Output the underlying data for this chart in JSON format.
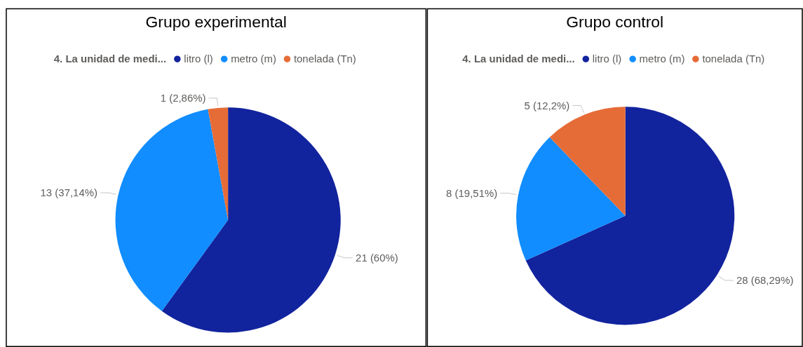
{
  "chart_data": [
    {
      "type": "pie",
      "title": "Grupo experimental",
      "legend_title": "4. La unidad de medi...",
      "legend": "top",
      "categories": [
        "litro (l)",
        "metro (m)",
        "tonelada (Tn)"
      ],
      "values": [
        21,
        13,
        1
      ],
      "colors": [
        "#12239e",
        "#118dff",
        "#e66c37"
      ],
      "value_labels": [
        "21 (60%)",
        "13 (37,14%)",
        "1 (2,86%)"
      ]
    },
    {
      "type": "pie",
      "title": "Grupo control",
      "legend_title": "4. La unidad de medi...",
      "legend": "top",
      "categories": [
        "litro (l)",
        "metro (m)",
        "tonelada (Tn)"
      ],
      "values": [
        28,
        8,
        5
      ],
      "colors": [
        "#12239e",
        "#118dff",
        "#e66c37"
      ],
      "value_labels": [
        "28 (68,29%)",
        "8 (19,51%)",
        "5 (12,2%)"
      ]
    }
  ]
}
